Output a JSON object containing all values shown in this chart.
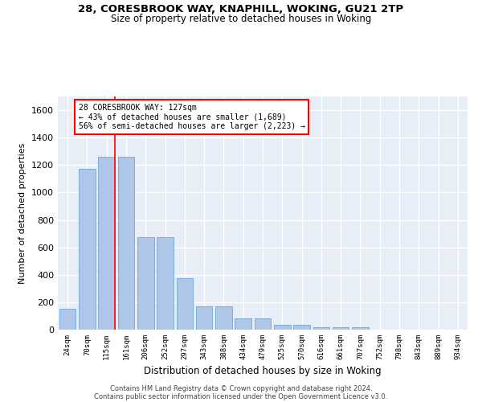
{
  "title_line1": "28, CORESBROOK WAY, KNAPHILL, WOKING, GU21 2TP",
  "title_line2": "Size of property relative to detached houses in Woking",
  "xlabel": "Distribution of detached houses by size in Woking",
  "ylabel": "Number of detached properties",
  "bar_color": "#aec6e8",
  "bar_edge_color": "#5b9bd5",
  "categories": [
    "24sqm",
    "70sqm",
    "115sqm",
    "161sqm",
    "206sqm",
    "252sqm",
    "297sqm",
    "343sqm",
    "388sqm",
    "434sqm",
    "479sqm",
    "525sqm",
    "570sqm",
    "616sqm",
    "661sqm",
    "707sqm",
    "752sqm",
    "798sqm",
    "843sqm",
    "889sqm",
    "934sqm"
  ],
  "values": [
    150,
    1170,
    1260,
    1260,
    675,
    675,
    375,
    170,
    170,
    80,
    80,
    35,
    35,
    20,
    20,
    15,
    0,
    0,
    0,
    0,
    0
  ],
  "ylim": [
    0,
    1700
  ],
  "yticks": [
    0,
    200,
    400,
    600,
    800,
    1000,
    1200,
    1400,
    1600
  ],
  "vline_x": 2.43,
  "annotation_line1": "28 CORESBROOK WAY: 127sqm",
  "annotation_line2": "← 43% of detached houses are smaller (1,689)",
  "annotation_line3": "56% of semi-detached houses are larger (2,223) →",
  "bg_color": "#e8eef7",
  "grid_color": "#ffffff",
  "footer_line1": "Contains HM Land Registry data © Crown copyright and database right 2024.",
  "footer_line2": "Contains public sector information licensed under the Open Government Licence v3.0."
}
